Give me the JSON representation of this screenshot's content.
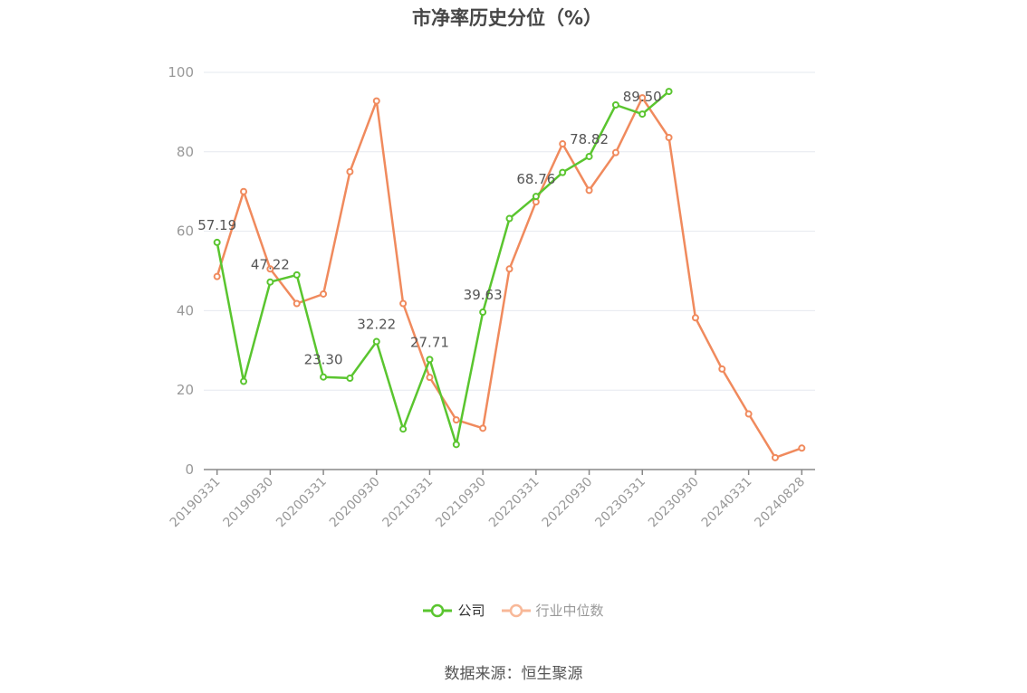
{
  "title": "市净率历史分位（%）",
  "source": "数据来源：恒生聚源",
  "colors": {
    "company": "#5ac52f",
    "industry": "#f08a5d",
    "industry_legend": "#f8b898",
    "grid": "#e6e8ef",
    "axis": "#999999",
    "label": "#555555"
  },
  "chart_data": {
    "type": "line",
    "title": "市净率历史分位（%）",
    "ylim": [
      0,
      100
    ],
    "yticks": [
      0,
      20,
      40,
      60,
      80,
      100
    ],
    "x_tick_labels": [
      "20190331",
      "20190930",
      "20200331",
      "20200930",
      "20210331",
      "20210930",
      "20220331",
      "20220930",
      "20230331",
      "20230930",
      "20240331",
      "20240828"
    ],
    "x": [
      "20190331",
      "20190630",
      "20190930",
      "20191231",
      "20200331",
      "20200630",
      "20200930",
      "20201231",
      "20210331",
      "20210630",
      "20210930",
      "20211231",
      "20220331",
      "20220630",
      "20220930",
      "20221231",
      "20230331",
      "20230630",
      "20230930",
      "20231231",
      "20240331",
      "20240630",
      "20240828"
    ],
    "grid": true,
    "legend_position": "bottom-center",
    "series": [
      {
        "name": "公司",
        "values": [
          57.19,
          22.2,
          47.22,
          49.0,
          23.3,
          23.0,
          32.22,
          10.2,
          27.71,
          6.3,
          39.63,
          63.2,
          68.76,
          74.8,
          78.82,
          91.8,
          89.5,
          95.2,
          null,
          null,
          null,
          null,
          null
        ],
        "labeled_points": [
          {
            "index": 0,
            "label": "57.19"
          },
          {
            "index": 2,
            "label": "47.22"
          },
          {
            "index": 4,
            "label": "23.30"
          },
          {
            "index": 6,
            "label": "32.22"
          },
          {
            "index": 8,
            "label": "27.71"
          },
          {
            "index": 10,
            "label": "39.63"
          },
          {
            "index": 12,
            "label": "68.76"
          },
          {
            "index": 14,
            "label": "78.82"
          },
          {
            "index": 16,
            "label": "89.50"
          }
        ]
      },
      {
        "name": "行业中位数",
        "values": [
          48.6,
          70.0,
          50.5,
          41.8,
          44.2,
          75.0,
          92.8,
          41.8,
          23.2,
          12.5,
          10.4,
          50.5,
          67.4,
          82.0,
          70.3,
          79.8,
          93.6,
          83.6,
          38.2,
          25.3,
          14.0,
          3.0,
          5.4
        ]
      }
    ]
  }
}
